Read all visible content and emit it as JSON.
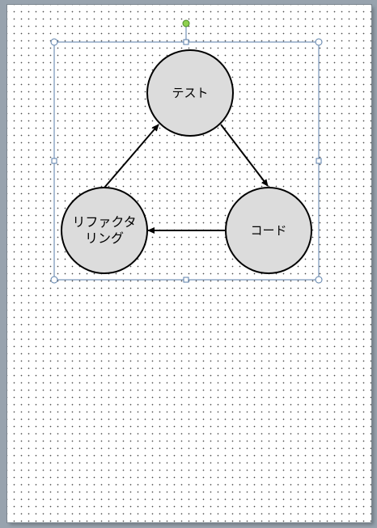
{
  "diagram": {
    "nodes": [
      {
        "id": "test",
        "label": "テスト"
      },
      {
        "id": "code",
        "label": "コード"
      },
      {
        "id": "refactoring",
        "label_line1": "リファクタ",
        "label_line2": "リング"
      }
    ],
    "colors": {
      "node_fill": "#dcdcdc",
      "node_stroke": "#000000",
      "arrow": "#000000",
      "selection": "#5a7ea8",
      "rotate_handle": "#8fd14f"
    }
  }
}
